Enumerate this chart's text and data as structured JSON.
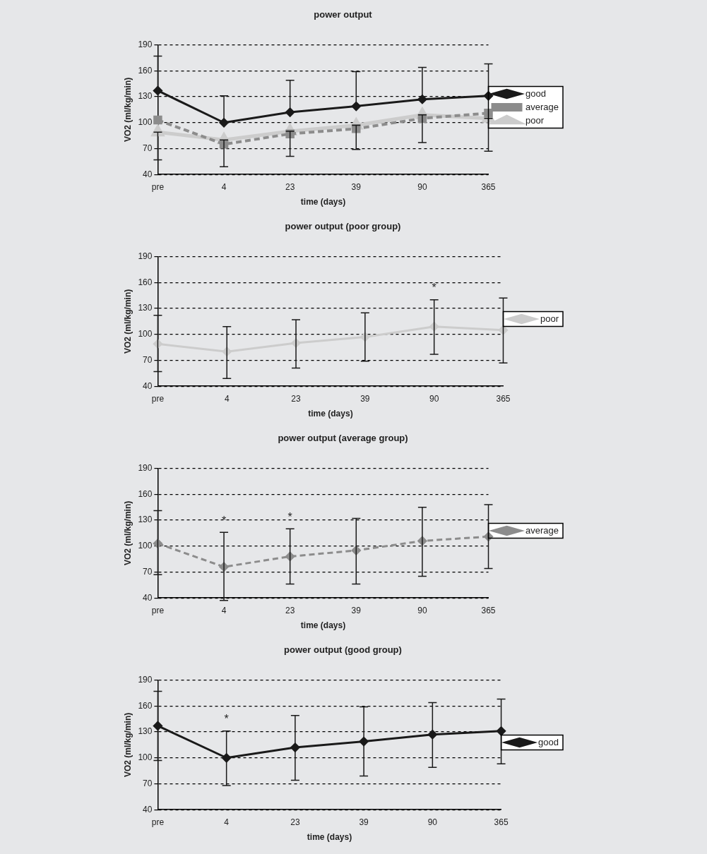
{
  "chart_data": [
    {
      "type": "line",
      "title": "power output",
      "xlabel": "time (days)",
      "ylabel": "VO2 (ml/kg/min)",
      "categories": [
        "pre",
        "4",
        "23",
        "39",
        "90",
        "365"
      ],
      "ylim": [
        40,
        190
      ],
      "yticks": [
        40,
        70,
        100,
        130,
        160,
        190
      ],
      "grid": "y",
      "legend": "right",
      "series": [
        {
          "name": "good",
          "color": "#1a1a1a",
          "marker": "diamond",
          "line_style": "solid",
          "values": [
            137,
            100,
            112,
            119,
            127,
            131
          ],
          "errors": [
            [
              137,
              177
            ],
            [
              100,
              131
            ],
            [
              112,
              149
            ],
            [
              119,
              159
            ],
            [
              127,
              164
            ],
            [
              131,
              168
            ]
          ]
        },
        {
          "name": "average",
          "color": "#8c8c8c",
          "marker": "square",
          "line_style": "dashed",
          "values": [
            103,
            75,
            87,
            93,
            105,
            111
          ]
        },
        {
          "name": "poor",
          "color": "#cccccc",
          "marker": "triangle",
          "line_style": "solid",
          "values": [
            89,
            80,
            90,
            97,
            109,
            105
          ],
          "errors": [
            [
              57,
              89
            ],
            [
              49,
              80
            ],
            [
              61,
              90
            ],
            [
              69,
              97
            ],
            [
              77,
              109
            ],
            [
              67,
              105
            ]
          ]
        }
      ]
    },
    {
      "type": "line",
      "title": "power output (poor group)",
      "xlabel": "time (days)",
      "ylabel": "VO2 (ml/kg/min)",
      "categories": [
        "pre",
        "4",
        "23",
        "39",
        "90",
        "365"
      ],
      "ylim": [
        40,
        190
      ],
      "yticks": [
        40,
        70,
        100,
        130,
        160,
        190
      ],
      "grid": "y",
      "legend": "right",
      "series": [
        {
          "name": "poor",
          "color": "#cccccc",
          "marker": "diamond",
          "line_style": "solid",
          "values": [
            89,
            80,
            90,
            97,
            109,
            105
          ],
          "errors": [
            [
              57,
              122
            ],
            [
              49,
              109
            ],
            [
              61,
              117
            ],
            [
              69,
              125
            ],
            [
              77,
              140
            ],
            [
              67,
              142
            ]
          ]
        }
      ],
      "annotations": [
        {
          "text": "*",
          "x": "90",
          "y": 109
        }
      ]
    },
    {
      "type": "line",
      "title": "power output (average group)",
      "xlabel": "time (days)",
      "ylabel": "VO2 (ml/kg/min)",
      "categories": [
        "pre",
        "4",
        "23",
        "39",
        "90",
        "365"
      ],
      "ylim": [
        40,
        190
      ],
      "yticks": [
        40,
        70,
        100,
        130,
        160,
        190
      ],
      "grid": "y",
      "legend": "right",
      "series": [
        {
          "name": "average",
          "color": "#8c8c8c",
          "marker": "diamond",
          "line_style": "dashed",
          "values": [
            103,
            76,
            88,
            95,
            106,
            111
          ],
          "errors": [
            [
              67,
              141
            ],
            [
              37,
              116
            ],
            [
              56,
              120
            ],
            [
              56,
              132
            ],
            [
              65,
              145
            ],
            [
              74,
              148
            ]
          ]
        }
      ],
      "annotations": [
        {
          "text": "*",
          "x": "4",
          "y": 116
        },
        {
          "text": "*",
          "x": "23",
          "y": 88
        }
      ]
    },
    {
      "type": "line",
      "title": "power output (good group)",
      "xlabel": "time (days)",
      "ylabel": "VO2 (ml/kg/min)",
      "categories": [
        "pre",
        "4",
        "23",
        "39",
        "90",
        "365"
      ],
      "ylim": [
        40,
        190
      ],
      "yticks": [
        40,
        70,
        100,
        130,
        160,
        190
      ],
      "grid": "y",
      "legend": "right",
      "series": [
        {
          "name": "good",
          "color": "#1a1a1a",
          "marker": "diamond",
          "line_style": "solid",
          "values": [
            137,
            100,
            112,
            119,
            127,
            131
          ],
          "errors": [
            [
              97,
              177
            ],
            [
              68,
              131
            ],
            [
              74,
              149
            ],
            [
              79,
              159
            ],
            [
              89,
              164
            ],
            [
              93,
              168
            ]
          ]
        }
      ],
      "annotations": [
        {
          "text": "*",
          "x": "4",
          "y": 100
        }
      ]
    }
  ]
}
